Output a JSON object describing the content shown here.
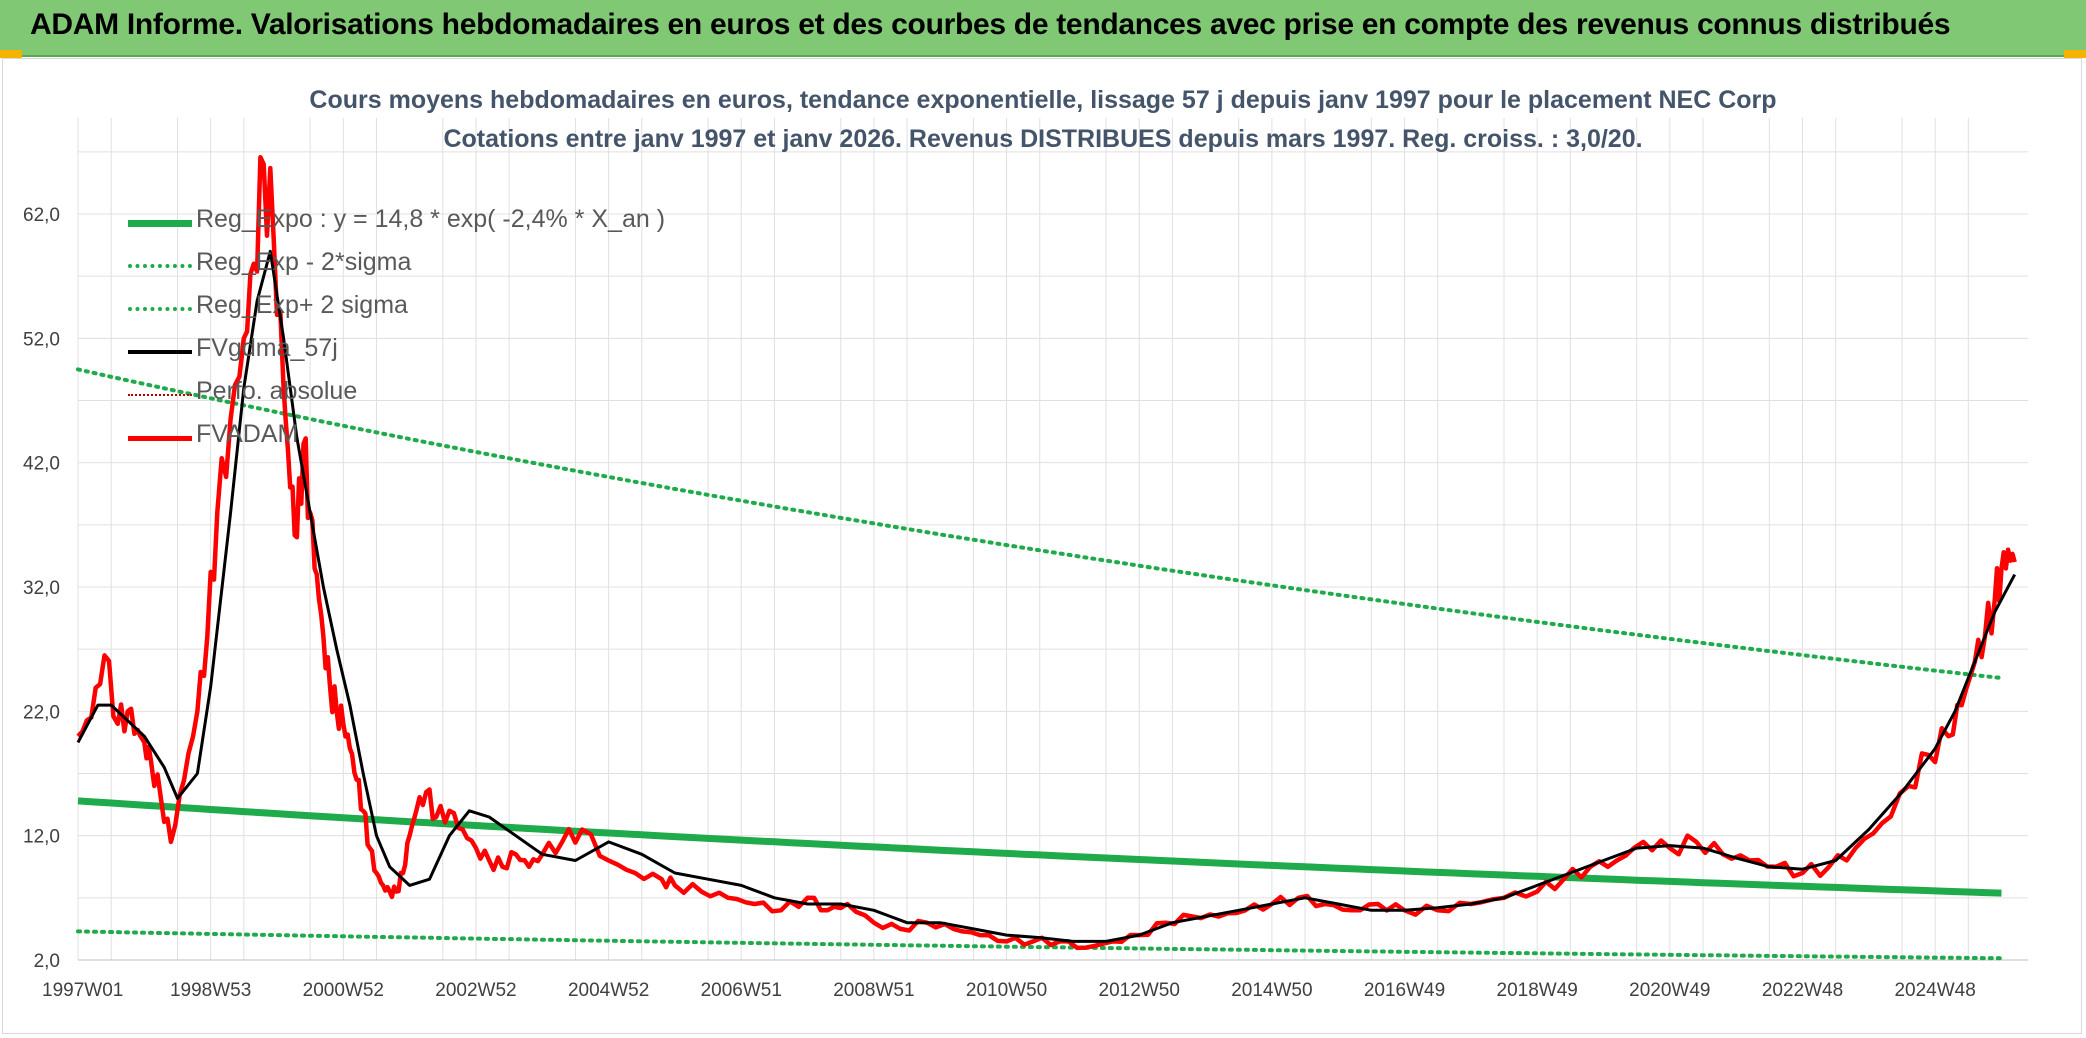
{
  "banner": {
    "title": "ADAM Informe. Valorisations hebdomadaires en euros et des courbes de tendances avec prise en compte des revenus connus distribués"
  },
  "colors": {
    "banner_bg": "#80c873",
    "reg_exp": "#1faa4b",
    "sigma": "#1faa4b",
    "fvgdma": "#000000",
    "perfo": "#c00000",
    "fvadam": "#ff0000",
    "grid": "#e0e0e0"
  },
  "chart_data": {
    "type": "line",
    "title_line1": "Cours moyens hebdomadaires en euros, tendance exponentielle, lissage 57 j depuis janv 1997 pour le placement NEC Corp",
    "title_line2": "Cotations entre janv 1997 et janv 2026. Revenus DISTRIBUES depuis mars 1997. Reg. croiss. : 3,0/20.",
    "ylim": [
      2,
      68
    ],
    "xlim": [
      1997.0,
      2026.4
    ],
    "y_ticks": [
      2,
      12,
      22,
      32,
      42,
      52,
      62
    ],
    "y_tick_labels": [
      "2,0",
      "12,0",
      "22,0",
      "32,0",
      "42,0",
      "52,0",
      "62,0"
    ],
    "x_ticks": [
      1997.0,
      1999.0,
      2001.0,
      2003.0,
      2005.0,
      2007.0,
      2009.0,
      2011.0,
      2013.0,
      2015.0,
      2017.0,
      2019.0,
      2021.0,
      2023.0,
      2025.0
    ],
    "x_tick_labels": [
      "1997W01",
      "1998W53",
      "2000W52",
      "2002W52",
      "2004W52",
      "2006W51",
      "2008W51",
      "2010W50",
      "2012W50",
      "2014W50",
      "2016W49",
      "2018W49",
      "2020W49",
      "2022W48",
      "2024W48"
    ],
    "legend": [
      {
        "key": "reg_exp",
        "label": "Reg_Expo : y = 14,8 * exp( -2,4% *  X_an )",
        "style": "solid-thick"
      },
      {
        "key": "sigma_minus",
        "label": "Reg_Exp - 2*sigma",
        "style": "dotted"
      },
      {
        "key": "sigma_plus",
        "label": "Reg_Exp+ 2 sigma",
        "style": "dotted"
      },
      {
        "key": "fvgdma",
        "label": "FVgdma_57j",
        "style": "solid"
      },
      {
        "key": "perfo",
        "label": "Perfo. absolue",
        "style": "dotted-thin"
      },
      {
        "key": "fvadam",
        "label": "FVADAM",
        "style": "solid-red"
      }
    ],
    "series": [
      {
        "name": "Reg_Expo",
        "style": "solid-thick",
        "x": [
          1997.0,
          2026.2
        ],
        "values": [
          14.8,
          7.3
        ],
        "exp_growth": -0.024,
        "exp_a": 14.8
      },
      {
        "name": "Reg_Exp - 2*sigma",
        "style": "dotted",
        "x": [
          1997.0,
          2026.2
        ],
        "values": [
          4.3,
          2.1
        ],
        "exp_growth": -0.024,
        "exp_a": 4.3
      },
      {
        "name": "Reg_Exp+ 2 sigma",
        "style": "dotted",
        "x": [
          1997.0,
          2026.2
        ],
        "values": [
          49.5,
          24.4
        ],
        "exp_growth": -0.024,
        "exp_a": 49.5
      },
      {
        "name": "FVADAM",
        "style": "solid-red",
        "x": [
          1997.0,
          1997.2,
          1997.4,
          1997.6,
          1997.75,
          1997.9,
          1998.0,
          1998.1,
          1998.25,
          1998.4,
          1998.6,
          1998.8,
          1998.95,
          1999.1,
          1999.3,
          1999.5,
          1999.65,
          1999.8,
          1999.95,
          2000.1,
          2000.2,
          2000.3,
          2000.4,
          2000.5,
          2000.6,
          2000.7,
          2000.8,
          2000.9,
          2001.0,
          2001.1,
          2001.2,
          2001.3,
          2001.4,
          2001.5,
          2001.6,
          2001.7,
          2001.8,
          2001.9,
          2002.0,
          2002.1,
          2002.25,
          2002.4,
          2002.6,
          2002.8,
          2003.0,
          2003.2,
          2003.4,
          2003.6,
          2003.8,
          2004.0,
          2004.3,
          2004.6,
          2005.0,
          2005.4,
          2005.8,
          2006.0,
          2006.4,
          2006.8,
          2007.2,
          2007.6,
          2008.0,
          2008.3,
          2008.6,
          2009.0,
          2009.4,
          2009.8,
          2010.2,
          2010.6,
          2011.0,
          2011.4,
          2011.8,
          2012.2,
          2012.6,
          2013.0,
          2013.4,
          2013.8,
          2014.2,
          2014.6,
          2015.0,
          2015.4,
          2015.8,
          2016.2,
          2016.6,
          2017.0,
          2017.5,
          2018.0,
          2018.5,
          2019.0,
          2019.4,
          2019.8,
          2020.2,
          2020.6,
          2021.0,
          2021.4,
          2021.8,
          2022.2,
          2022.6,
          2023.0,
          2023.4,
          2023.8,
          2024.2,
          2024.6,
          2024.9,
          2025.2,
          2025.4,
          2025.6,
          2025.75,
          2025.9,
          2026.0,
          2026.1,
          2026.2
        ],
        "values": [
          20.0,
          21.5,
          26.5,
          21.0,
          22.0,
          20.5,
          19.5,
          18.0,
          15.0,
          11.5,
          16.5,
          22.0,
          28.0,
          38.0,
          45.5,
          52.0,
          58.0,
          66.0,
          60.0,
          48.0,
          40.0,
          36.0,
          43.5,
          38.0,
          33.0,
          28.0,
          24.0,
          22.0,
          21.0,
          19.0,
          16.5,
          14.0,
          11.0,
          9.0,
          8.0,
          7.5,
          7.5,
          9.0,
          12.0,
          14.0,
          15.5,
          13.5,
          14.0,
          12.5,
          11.0,
          10.0,
          9.5,
          10.5,
          9.5,
          10.5,
          11.5,
          12.5,
          10.0,
          9.0,
          8.5,
          8.0,
          7.5,
          7.0,
          6.5,
          6.0,
          7.0,
          6.0,
          6.5,
          5.0,
          4.5,
          5.0,
          4.5,
          4.0,
          3.5,
          3.5,
          3.5,
          3.0,
          3.5,
          4.0,
          5.0,
          5.5,
          5.5,
          6.0,
          6.5,
          7.0,
          6.5,
          6.0,
          6.5,
          6.0,
          6.0,
          6.5,
          7.0,
          7.5,
          8.5,
          9.5,
          10.0,
          11.5,
          11.0,
          11.5,
          10.5,
          10.0,
          9.5,
          9.0,
          9.5,
          11.0,
          13.0,
          16.0,
          18.5,
          20.0,
          22.5,
          26.0,
          28.0,
          31.0,
          33.5,
          35.0,
          34.0
        ]
      },
      {
        "name": "FVgdma_57j",
        "style": "solid",
        "x": [
          1997.0,
          1997.3,
          1997.5,
          1997.8,
          1998.0,
          1998.3,
          1998.5,
          1998.8,
          1999.0,
          1999.3,
          1999.5,
          1999.7,
          1999.9,
          2000.1,
          2000.3,
          2000.5,
          2000.7,
          2000.9,
          2001.1,
          2001.3,
          2001.5,
          2001.7,
          2002.0,
          2002.3,
          2002.6,
          2002.9,
          2003.2,
          2003.6,
          2004.0,
          2004.5,
          2005.0,
          2005.5,
          2006.0,
          2006.5,
          2007.0,
          2007.5,
          2008.0,
          2008.5,
          2009.0,
          2009.5,
          2010.0,
          2010.5,
          2011.0,
          2011.5,
          2012.0,
          2012.5,
          2013.0,
          2013.5,
          2014.0,
          2014.5,
          2015.0,
          2015.5,
          2016.0,
          2016.5,
          2017.0,
          2017.5,
          2018.0,
          2018.5,
          2019.0,
          2019.5,
          2020.0,
          2020.5,
          2021.0,
          2021.5,
          2022.0,
          2022.5,
          2023.0,
          2023.5,
          2024.0,
          2024.5,
          2025.0,
          2025.3,
          2025.6,
          2025.9,
          2026.2
        ],
        "values": [
          19.5,
          22.5,
          22.5,
          21.0,
          20.0,
          17.5,
          15.0,
          17.0,
          24.0,
          38.0,
          48.0,
          55.0,
          59.0,
          52.0,
          44.0,
          38.0,
          32.0,
          27.0,
          22.5,
          17.0,
          12.0,
          9.5,
          8.0,
          8.5,
          12.0,
          14.0,
          13.5,
          12.0,
          10.5,
          10.0,
          11.5,
          10.5,
          9.0,
          8.5,
          8.0,
          7.0,
          6.5,
          6.5,
          6.0,
          5.0,
          5.0,
          4.5,
          4.0,
          3.8,
          3.5,
          3.5,
          4.0,
          5.0,
          5.5,
          6.0,
          6.5,
          7.0,
          6.5,
          6.0,
          6.0,
          6.2,
          6.5,
          7.0,
          8.0,
          9.0,
          10.0,
          11.0,
          11.2,
          11.0,
          10.2,
          9.5,
          9.3,
          10.0,
          12.5,
          15.5,
          19.0,
          22.0,
          26.0,
          30.0,
          33.0
        ]
      }
    ]
  }
}
